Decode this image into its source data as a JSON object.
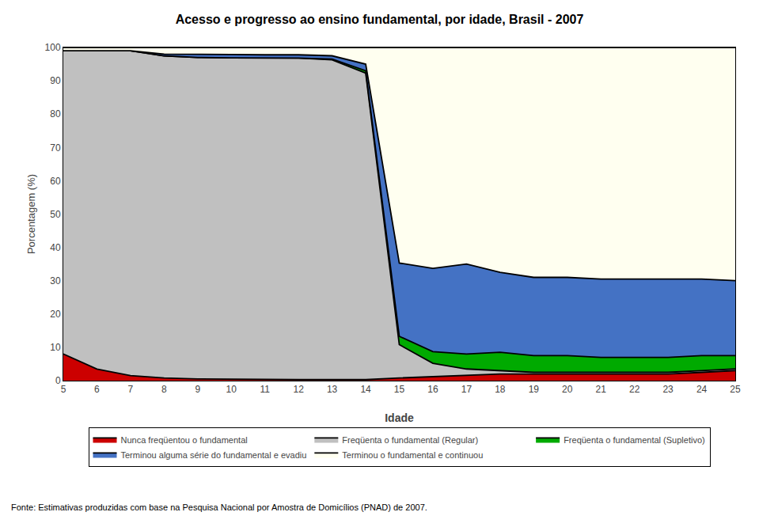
{
  "chart_data": {
    "type": "area",
    "stacked": true,
    "title": "Acesso e progresso ao ensino fundamental, por idade, Brasil - 2007",
    "x_label": "Idade",
    "y_label": "Porcentagem (%)",
    "x": [
      5,
      6,
      7,
      8,
      9,
      10,
      11,
      12,
      13,
      14,
      15,
      16,
      17,
      18,
      19,
      20,
      21,
      22,
      23,
      24,
      25
    ],
    "series": [
      {
        "name": "Nunca freqüentou o fundamental",
        "color": "#CC0000",
        "values": [
          8.0,
          3.5,
          1.5,
          0.8,
          0.5,
          0.4,
          0.3,
          0.3,
          0.3,
          0.3,
          0.8,
          1.2,
          1.5,
          2.0,
          2.0,
          2.0,
          2.0,
          2.0,
          2.0,
          2.5,
          3.0
        ]
      },
      {
        "name": "Freqüenta o fundamental (Regular)",
        "color": "#C0C0C0",
        "values": [
          91.0,
          95.5,
          97.5,
          96.7,
          96.5,
          96.5,
          96.5,
          96.5,
          96.0,
          92.0,
          10.0,
          4.0,
          2.0,
          1.0,
          0.5,
          0.5,
          0.5,
          0.5,
          0.5,
          0.5,
          0.5
        ]
      },
      {
        "name": "Freqüenta o fundamental (Supletivo)",
        "color": "#00AA00",
        "values": [
          0.0,
          0.0,
          0.0,
          0.0,
          0.0,
          0.0,
          0.0,
          0.0,
          0.2,
          0.7,
          2.5,
          3.5,
          4.5,
          5.5,
          5.0,
          5.0,
          4.5,
          4.5,
          4.5,
          4.5,
          4.0
        ]
      },
      {
        "name": "Terminou alguma série do fundamental e evadiu",
        "color": "#4472C4",
        "values": [
          0.0,
          0.0,
          0.0,
          0.5,
          1.0,
          1.0,
          1.0,
          1.0,
          1.0,
          2.0,
          22.0,
          25.0,
          27.0,
          24.0,
          23.5,
          23.5,
          23.5,
          23.5,
          23.5,
          23.0,
          22.5
        ]
      },
      {
        "name": "Terminou o fundamental e continuou",
        "color": "#FFFFF0",
        "values": [
          1.0,
          1.0,
          1.0,
          2.0,
          2.0,
          2.1,
          2.2,
          2.2,
          2.5,
          5.0,
          64.7,
          66.3,
          65.0,
          67.5,
          69.0,
          69.0,
          69.5,
          69.5,
          69.5,
          69.5,
          70.0
        ]
      }
    ],
    "xlim": [
      5,
      25
    ],
    "xticks": [
      5,
      6,
      7,
      8,
      9,
      10,
      11,
      12,
      13,
      14,
      15,
      16,
      17,
      18,
      19,
      20,
      21,
      22,
      23,
      24,
      25
    ],
    "ylim": [
      0,
      100
    ],
    "yticks": [
      0,
      10,
      20,
      30,
      40,
      50,
      60,
      70,
      80,
      90,
      100
    ],
    "grid": false,
    "legend": "bottom",
    "annotations": [
      "Fonte: Estimativas produzidas com base na Pesquisa Nacional por Amostra de Domicílios (PNAD) de 2007."
    ]
  }
}
